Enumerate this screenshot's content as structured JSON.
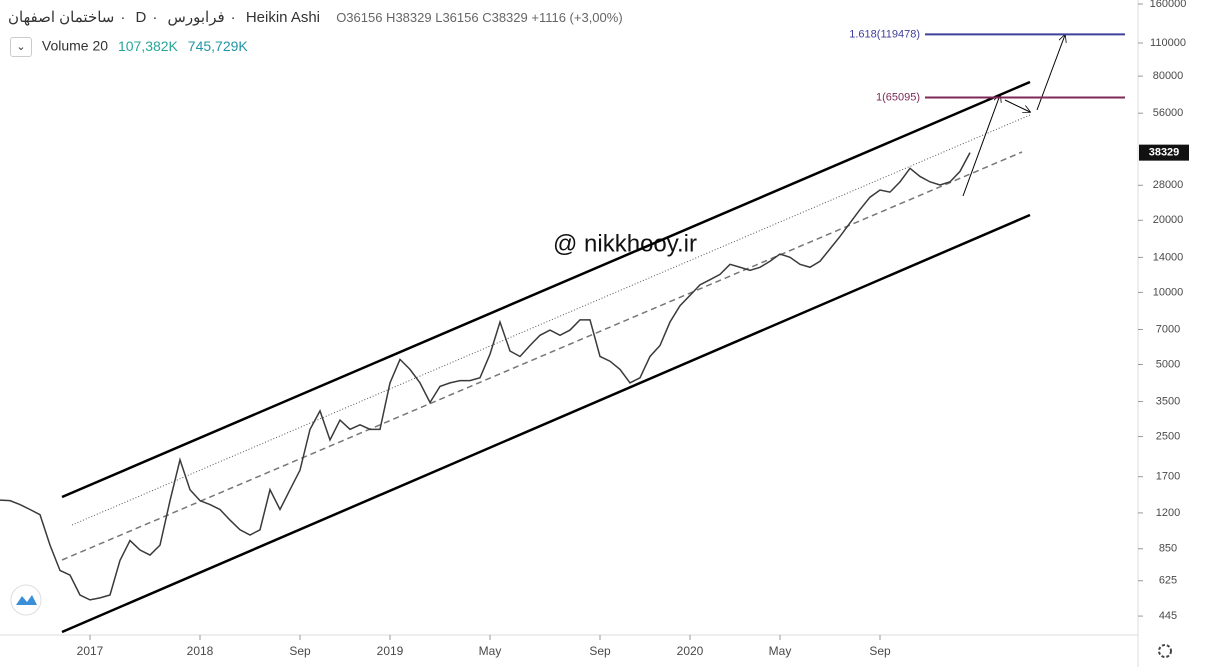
{
  "chart_data": {
    "type": "line",
    "header": {
      "symbol": "ساختمان اصفهان",
      "interval": "D",
      "exchange": "فرابورس",
      "style": "Heikin Ashi",
      "ohlc": "O36156 H38329 L36156 C38329 +1116 (+3,00%)"
    },
    "volume_legend": {
      "name": "Volume 20",
      "value_1": "107,382K",
      "value_2": "745,729K"
    },
    "watermark": "@ nikkhooy.ir",
    "categories": [
      null,
      null,
      null,
      null,
      null,
      null,
      null,
      null,
      null,
      "2017",
      null,
      null,
      null,
      null,
      null,
      null,
      null,
      null,
      null,
      null,
      "2018",
      null,
      null,
      null,
      null,
      null,
      null,
      null,
      null,
      null,
      "Sep",
      null,
      null,
      null,
      null,
      null,
      null,
      null,
      null,
      "2019",
      null,
      null,
      null,
      null,
      null,
      null,
      null,
      null,
      null,
      "May",
      null,
      null,
      null,
      null,
      null,
      null,
      null,
      null,
      null,
      null,
      "Sep",
      null,
      null,
      null,
      null,
      null,
      null,
      null,
      null,
      "2020",
      null,
      null,
      null,
      null,
      null,
      null,
      null,
      null,
      "May",
      null,
      null,
      null,
      null,
      null,
      null,
      null,
      null,
      null,
      "Sep",
      null,
      null,
      null,
      null,
      null,
      null,
      null,
      null,
      null
    ],
    "values": [
      1357,
      1350,
      1300,
      1240,
      1180,
      880,
      690,
      660,
      545,
      520,
      530,
      545,
      760,
      920,
      840,
      800,
      880,
      1350,
      2000,
      1500,
      1350,
      1300,
      1240,
      1120,
      1020,
      970,
      1020,
      1500,
      1240,
      1500,
      1810,
      2680,
      3200,
      2420,
      2930,
      2680,
      2800,
      2680,
      2680,
      4190,
      5250,
      4770,
      4190,
      3470,
      4050,
      4190,
      4280,
      4280,
      4400,
      5520,
      7520,
      5690,
      5400,
      6000,
      6620,
      6960,
      6620,
      6960,
      7680,
      7680,
      5400,
      5160,
      4770,
      4190,
      4400,
      5400,
      6000,
      7520,
      8800,
      9720,
      10750,
      11300,
      11890,
      13100,
      12730,
      12360,
      12730,
      13490,
      14460,
      14020,
      13100,
      12730,
      13490,
      15190,
      17120,
      19490,
      22170,
      24970,
      26750,
      26230,
      28940,
      32970,
      30480,
      28940,
      28100,
      28940,
      32000,
      38329
    ],
    "color": "#3a3a3a",
    "last_price": 38329,
    "levels": [
      {
        "label": "1.618(119478)",
        "value": 119478,
        "color": "#3f3f9c"
      },
      {
        "label": "1(65095)",
        "value": 65095,
        "color": "#7d2a5a"
      }
    ],
    "log_scale": true,
    "ylim": [
      371,
      166300
    ],
    "yticks": [
      445,
      625,
      850,
      1200,
      1700,
      2500,
      3500,
      5000,
      7000,
      10000,
      14000,
      20000,
      28000,
      56000,
      80000,
      110000,
      160000
    ]
  }
}
